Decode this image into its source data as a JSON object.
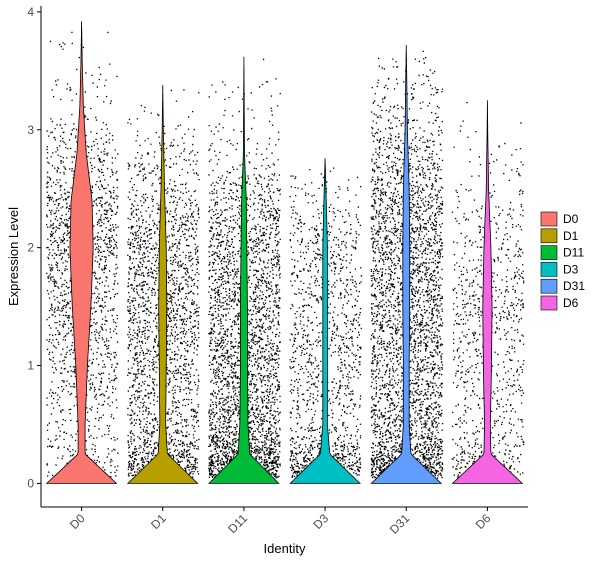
{
  "chart_data": {
    "type": "violin",
    "xlabel": "Identity",
    "ylabel": "Expression Level",
    "ylim": [
      -0.2,
      4.05
    ],
    "yticks": [
      0,
      1,
      2,
      3,
      4
    ],
    "grid": false,
    "legend_position": "right",
    "categories": [
      "D0",
      "D1",
      "D11",
      "D3",
      "D31",
      "D6"
    ],
    "series": [
      {
        "name": "D0",
        "color": "#F8766D",
        "max": 3.92,
        "points": 1700,
        "dist": [
          [
            0.0,
            0.6
          ],
          [
            0.25,
            0.06
          ],
          [
            0.5,
            0.06
          ],
          [
            1.0,
            0.1
          ],
          [
            1.5,
            0.16
          ],
          [
            2.0,
            0.2
          ],
          [
            2.4,
            0.18
          ],
          [
            2.8,
            0.08
          ],
          [
            3.2,
            0.03
          ],
          [
            3.6,
            0.01
          ],
          [
            3.92,
            0.0
          ]
        ]
      },
      {
        "name": "D1",
        "color": "#B79F00",
        "max": 3.38,
        "points": 2300,
        "dist": [
          [
            0.0,
            0.6
          ],
          [
            0.25,
            0.08
          ],
          [
            0.5,
            0.05
          ],
          [
            1.0,
            0.06
          ],
          [
            1.5,
            0.07
          ],
          [
            2.0,
            0.06
          ],
          [
            2.5,
            0.03
          ],
          [
            3.0,
            0.01
          ],
          [
            3.38,
            0.0
          ]
        ]
      },
      {
        "name": "D11",
        "color": "#00BA38",
        "max": 3.62,
        "points": 3200,
        "dist": [
          [
            0.0,
            0.6
          ],
          [
            0.25,
            0.1
          ],
          [
            0.5,
            0.07
          ],
          [
            1.0,
            0.06
          ],
          [
            1.5,
            0.06
          ],
          [
            2.0,
            0.05
          ],
          [
            2.4,
            0.04
          ],
          [
            2.8,
            0.01
          ],
          [
            3.2,
            0.005
          ],
          [
            3.62,
            0.0
          ]
        ]
      },
      {
        "name": "D3",
        "color": "#00BFC4",
        "max": 2.76,
        "points": 1400,
        "dist": [
          [
            0.0,
            0.6
          ],
          [
            0.25,
            0.08
          ],
          [
            0.5,
            0.04
          ],
          [
            1.0,
            0.04
          ],
          [
            1.5,
            0.04
          ],
          [
            2.0,
            0.04
          ],
          [
            2.4,
            0.02
          ],
          [
            2.76,
            0.0
          ]
        ]
      },
      {
        "name": "D31",
        "color": "#619CFF",
        "max": 3.72,
        "points": 3500,
        "dist": [
          [
            0.0,
            0.6
          ],
          [
            0.25,
            0.08
          ],
          [
            0.5,
            0.05
          ],
          [
            1.0,
            0.05
          ],
          [
            1.5,
            0.06
          ],
          [
            2.0,
            0.06
          ],
          [
            2.5,
            0.05
          ],
          [
            3.0,
            0.02
          ],
          [
            3.4,
            0.01
          ],
          [
            3.72,
            0.0
          ]
        ]
      },
      {
        "name": "D6",
        "color": "#F564E3",
        "max": 3.25,
        "points": 900,
        "dist": [
          [
            0.0,
            0.6
          ],
          [
            0.25,
            0.06
          ],
          [
            0.5,
            0.05
          ],
          [
            1.0,
            0.07
          ],
          [
            1.5,
            0.08
          ],
          [
            2.0,
            0.06
          ],
          [
            2.5,
            0.02
          ],
          [
            3.0,
            0.005
          ],
          [
            3.25,
            0.0
          ]
        ]
      }
    ]
  }
}
